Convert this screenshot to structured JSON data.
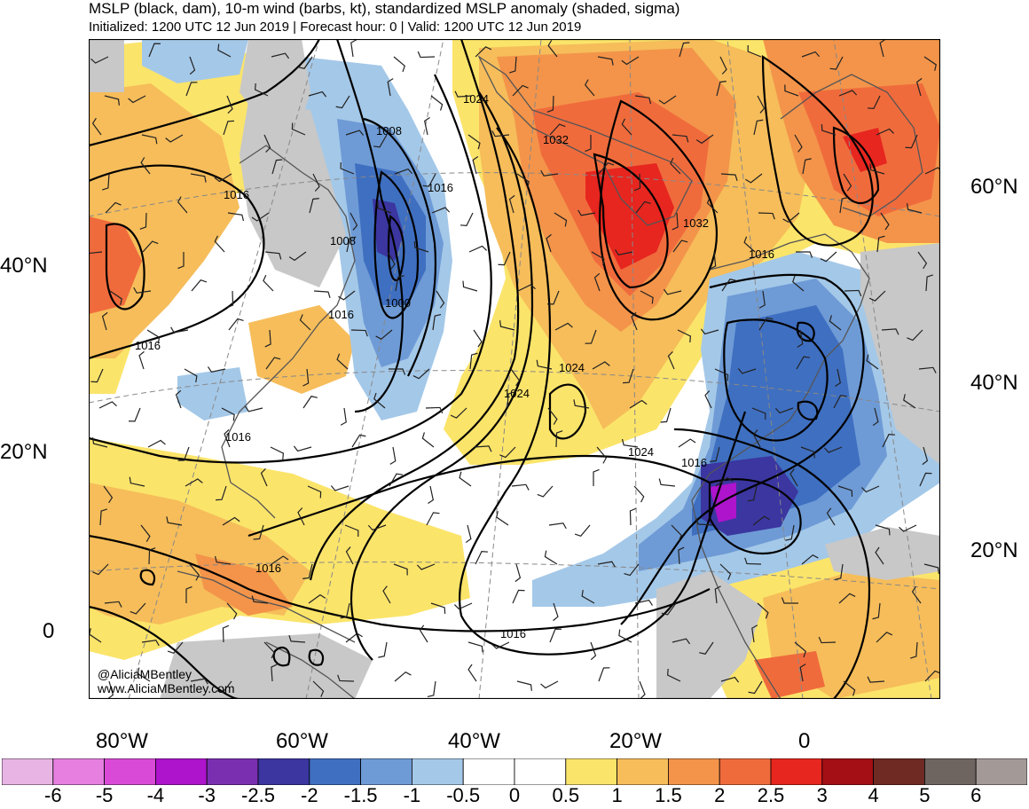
{
  "title": "MSLP (black, dam), 10-m wind (barbs, kt), standardized MSLP anomaly (shaded, sigma)",
  "subtitle": "Initialized: 1200 UTC 12 Jun 2019 | Forecast hour: 0 | Valid: 1200 UTC 12 Jun 2019",
  "lat_labels_left": [
    "40°N",
    "20°N",
    "0"
  ],
  "lat_labels_right": [
    "60°N",
    "40°N",
    "20°N"
  ],
  "lon_labels": [
    "80°W",
    "60°W",
    "40°W",
    "20°W",
    "0"
  ],
  "contour_labels": [
    "1024",
    "1008",
    "1016",
    "1032",
    "1016",
    "1008",
    "1032",
    "1016",
    "1000",
    "1016",
    "1016",
    "1024",
    "1024",
    "1016",
    "1024",
    "1016",
    "1016",
    "1016"
  ],
  "credit_line1": "@AliciaMBentley",
  "credit_line2": "www.AliciaMBentley.com",
  "colorbar": {
    "labels": [
      "-6",
      "-5",
      "-4",
      "-3",
      "-2.5",
      "-2",
      "-1.5",
      "-1",
      "-0.5",
      "0",
      "0.5",
      "1",
      "1.5",
      "2",
      "2.5",
      "3",
      "4",
      "5",
      "6"
    ],
    "colors": [
      "#e8b4e4",
      "#e67fe0",
      "#d94bd6",
      "#ad14cc",
      "#7a2fb0",
      "#3b36a0",
      "#3f6fc0",
      "#6e9bd6",
      "#a4c8e8",
      "#ffffff",
      "#ffffff",
      "#fbe46a",
      "#f6bd5a",
      "#f3944a",
      "#f06b3c",
      "#e6261f",
      "#a30f14",
      "#6f2a24",
      "#6e6560",
      "#a39a98"
    ]
  },
  "colors": {
    "land_gray": "#c8c8c8",
    "contour": "#000000"
  }
}
